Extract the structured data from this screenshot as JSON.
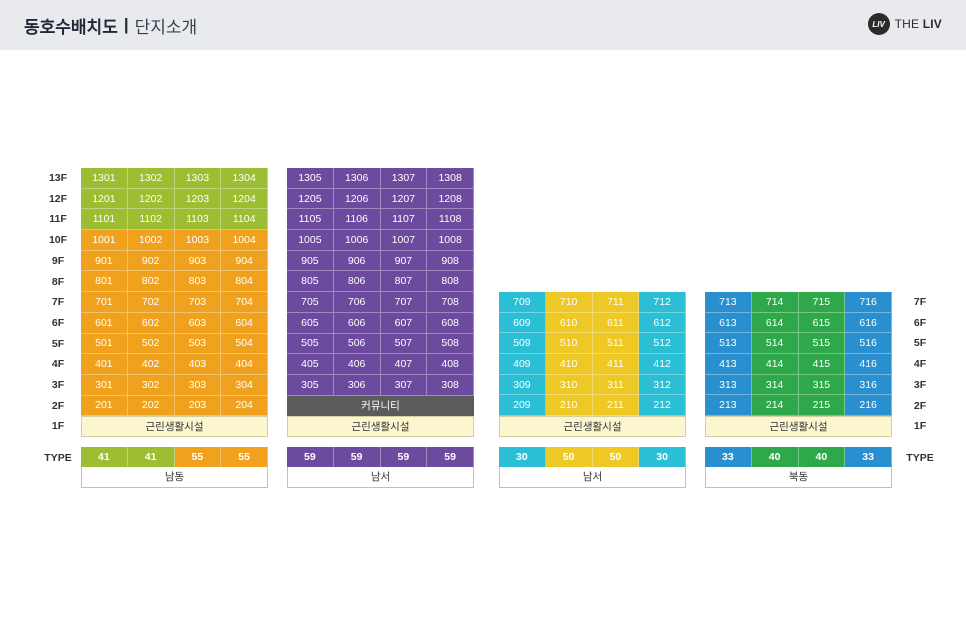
{
  "header": {
    "title": "동호수배치도",
    "separator": "|",
    "subtitle": "단지소개",
    "brand_mark": "LIV",
    "brand_the": "THE ",
    "brand_liv": "LIV"
  },
  "floor_labels_left": [
    "13F",
    "12F",
    "11F",
    "10F",
    "9F",
    "8F",
    "7F",
    "6F",
    "5F",
    "4F",
    "3F",
    "2F",
    "1F"
  ],
  "floor_labels_right": [
    "7F",
    "6F",
    "5F",
    "4F",
    "3F",
    "2F",
    "1F"
  ],
  "type_label_left": "TYPE",
  "type_label_right": "TYPE",
  "colors": {
    "green_light": "#9dbd33",
    "orange": "#f0a21e",
    "purple": "#6c4a9e",
    "cyan": "#2bbfd6",
    "yellow": "#eec824",
    "blue": "#2a8fcf",
    "green": "#2ea84a",
    "community_gray": "#5b5b5b",
    "amenity_bg": "#fbf6cf"
  },
  "buildings": [
    {
      "id": "b1",
      "rows": [
        [
          [
            "1301",
            "g"
          ],
          [
            "1302",
            "g"
          ],
          [
            "1303",
            "g"
          ],
          [
            "1304",
            "g"
          ]
        ],
        [
          [
            "1201",
            "g"
          ],
          [
            "1202",
            "g"
          ],
          [
            "1203",
            "g"
          ],
          [
            "1204",
            "g"
          ]
        ],
        [
          [
            "1101",
            "g"
          ],
          [
            "1102",
            "g"
          ],
          [
            "1103",
            "g"
          ],
          [
            "1104",
            "g"
          ]
        ],
        [
          [
            "1001",
            "o"
          ],
          [
            "1002",
            "o"
          ],
          [
            "1003",
            "o"
          ],
          [
            "1004",
            "o"
          ]
        ],
        [
          [
            "901",
            "o"
          ],
          [
            "902",
            "o"
          ],
          [
            "903",
            "o"
          ],
          [
            "904",
            "o"
          ]
        ],
        [
          [
            "801",
            "o"
          ],
          [
            "802",
            "o"
          ],
          [
            "803",
            "o"
          ],
          [
            "804",
            "o"
          ]
        ],
        [
          [
            "701",
            "o"
          ],
          [
            "702",
            "o"
          ],
          [
            "703",
            "o"
          ],
          [
            "704",
            "o"
          ]
        ],
        [
          [
            "601",
            "o"
          ],
          [
            "602",
            "o"
          ],
          [
            "603",
            "o"
          ],
          [
            "604",
            "o"
          ]
        ],
        [
          [
            "501",
            "o"
          ],
          [
            "502",
            "o"
          ],
          [
            "503",
            "o"
          ],
          [
            "504",
            "o"
          ]
        ],
        [
          [
            "401",
            "o"
          ],
          [
            "402",
            "o"
          ],
          [
            "403",
            "o"
          ],
          [
            "404",
            "o"
          ]
        ],
        [
          [
            "301",
            "o"
          ],
          [
            "302",
            "o"
          ],
          [
            "303",
            "o"
          ],
          [
            "304",
            "o"
          ]
        ],
        [
          [
            "201",
            "o"
          ],
          [
            "202",
            "o"
          ],
          [
            "203",
            "o"
          ],
          [
            "204",
            "o"
          ]
        ]
      ],
      "special_rows": [],
      "amenity": "근린생활시설",
      "types": [
        [
          "41",
          "g"
        ],
        [
          "41",
          "g"
        ],
        [
          "55",
          "o"
        ],
        [
          "55",
          "o"
        ]
      ],
      "orientation": "남동"
    },
    {
      "id": "b2",
      "rows": [
        [
          [
            "1305",
            "p"
          ],
          [
            "1306",
            "p"
          ],
          [
            "1307",
            "p"
          ],
          [
            "1308",
            "p"
          ]
        ],
        [
          [
            "1205",
            "p"
          ],
          [
            "1206",
            "p"
          ],
          [
            "1207",
            "p"
          ],
          [
            "1208",
            "p"
          ]
        ],
        [
          [
            "1105",
            "p"
          ],
          [
            "1106",
            "p"
          ],
          [
            "1107",
            "p"
          ],
          [
            "1108",
            "p"
          ]
        ],
        [
          [
            "1005",
            "p"
          ],
          [
            "1006",
            "p"
          ],
          [
            "1007",
            "p"
          ],
          [
            "1008",
            "p"
          ]
        ],
        [
          [
            "905",
            "p"
          ],
          [
            "906",
            "p"
          ],
          [
            "907",
            "p"
          ],
          [
            "908",
            "p"
          ]
        ],
        [
          [
            "805",
            "p"
          ],
          [
            "806",
            "p"
          ],
          [
            "807",
            "p"
          ],
          [
            "808",
            "p"
          ]
        ],
        [
          [
            "705",
            "p"
          ],
          [
            "706",
            "p"
          ],
          [
            "707",
            "p"
          ],
          [
            "708",
            "p"
          ]
        ],
        [
          [
            "605",
            "p"
          ],
          [
            "606",
            "p"
          ],
          [
            "607",
            "p"
          ],
          [
            "608",
            "p"
          ]
        ],
        [
          [
            "505",
            "p"
          ],
          [
            "506",
            "p"
          ],
          [
            "507",
            "p"
          ],
          [
            "508",
            "p"
          ]
        ],
        [
          [
            "405",
            "p"
          ],
          [
            "406",
            "p"
          ],
          [
            "407",
            "p"
          ],
          [
            "408",
            "p"
          ]
        ],
        [
          [
            "305",
            "p"
          ],
          [
            "306",
            "p"
          ],
          [
            "307",
            "p"
          ],
          [
            "308",
            "p"
          ]
        ]
      ],
      "community": "커뮤니티",
      "amenity": "근린생활시설",
      "types": [
        [
          "59",
          "p"
        ],
        [
          "59",
          "p"
        ],
        [
          "59",
          "p"
        ],
        [
          "59",
          "p"
        ]
      ],
      "orientation": "남서"
    },
    {
      "id": "b3",
      "rows": [
        [
          [
            "709",
            "c"
          ],
          [
            "710",
            "y"
          ],
          [
            "711",
            "y"
          ],
          [
            "712",
            "c"
          ]
        ],
        [
          [
            "609",
            "c"
          ],
          [
            "610",
            "y"
          ],
          [
            "611",
            "y"
          ],
          [
            "612",
            "c"
          ]
        ],
        [
          [
            "509",
            "c"
          ],
          [
            "510",
            "y"
          ],
          [
            "511",
            "y"
          ],
          [
            "512",
            "c"
          ]
        ],
        [
          [
            "409",
            "c"
          ],
          [
            "410",
            "y"
          ],
          [
            "411",
            "y"
          ],
          [
            "412",
            "c"
          ]
        ],
        [
          [
            "309",
            "c"
          ],
          [
            "310",
            "y"
          ],
          [
            "311",
            "y"
          ],
          [
            "312",
            "c"
          ]
        ],
        [
          [
            "209",
            "c"
          ],
          [
            "210",
            "y"
          ],
          [
            "211",
            "y"
          ],
          [
            "212",
            "c"
          ]
        ]
      ],
      "amenity": "근린생활시설",
      "types": [
        [
          "30",
          "c"
        ],
        [
          "50",
          "y"
        ],
        [
          "50",
          "y"
        ],
        [
          "30",
          "c"
        ]
      ],
      "orientation": "남서"
    },
    {
      "id": "b4",
      "rows": [
        [
          [
            "713",
            "b"
          ],
          [
            "714",
            "gr"
          ],
          [
            "715",
            "gr"
          ],
          [
            "716",
            "b"
          ]
        ],
        [
          [
            "613",
            "b"
          ],
          [
            "614",
            "gr"
          ],
          [
            "615",
            "gr"
          ],
          [
            "616",
            "b"
          ]
        ],
        [
          [
            "513",
            "b"
          ],
          [
            "514",
            "gr"
          ],
          [
            "515",
            "gr"
          ],
          [
            "516",
            "b"
          ]
        ],
        [
          [
            "413",
            "b"
          ],
          [
            "414",
            "gr"
          ],
          [
            "415",
            "gr"
          ],
          [
            "416",
            "b"
          ]
        ],
        [
          [
            "313",
            "b"
          ],
          [
            "314",
            "gr"
          ],
          [
            "315",
            "gr"
          ],
          [
            "316",
            "b"
          ]
        ],
        [
          [
            "213",
            "b"
          ],
          [
            "214",
            "gr"
          ],
          [
            "215",
            "gr"
          ],
          [
            "216",
            "b"
          ]
        ]
      ],
      "amenity": "근린생활시설",
      "types": [
        [
          "33",
          "b"
        ],
        [
          "40",
          "gr"
        ],
        [
          "40",
          "gr"
        ],
        [
          "33",
          "b"
        ]
      ],
      "orientation": "북동"
    }
  ]
}
